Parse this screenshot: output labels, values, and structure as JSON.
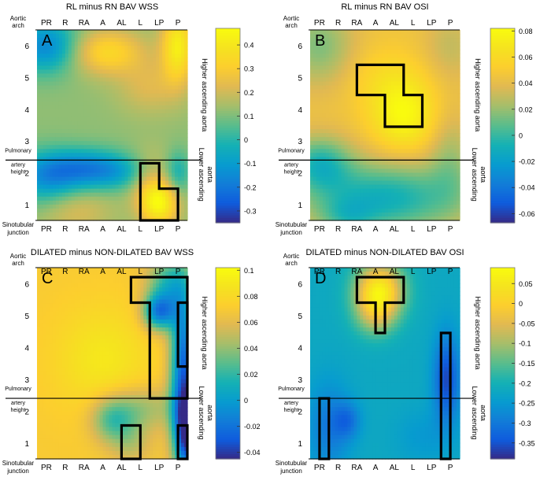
{
  "chart_data": [
    {
      "type": "heatmap",
      "letter": "A",
      "title": "RL minus RN BAV WSS",
      "colormap": "parula",
      "clim": [
        -0.35,
        0.47
      ],
      "colorbar_ticks": [
        "0.4",
        "0.3",
        "0.2",
        "0.1",
        "0",
        "-0.1",
        "-0.2",
        "-0.3"
      ],
      "colorbar_tick_values": [
        0.4,
        0.3,
        0.2,
        0.1,
        0,
        -0.1,
        -0.2,
        -0.3
      ],
      "outlines": [
        [
          [
            5,
            2.3
          ],
          [
            6,
            2.3
          ],
          [
            6,
            1.5
          ],
          [
            7,
            1.5
          ],
          [
            7,
            0.5
          ],
          [
            5,
            0.5
          ]
        ]
      ],
      "field": {
        "base": 0.12,
        "bumps": [
          {
            "x": 0,
            "y": 6,
            "amp": -0.28,
            "sx": 1.2,
            "sy": 0.6
          },
          {
            "x": 3.2,
            "y": 5.8,
            "amp": 0.22,
            "sx": 1.4,
            "sy": 0.5
          },
          {
            "x": 7,
            "y": 6,
            "amp": 0.3,
            "sx": 0.6,
            "sy": 0.8
          },
          {
            "x": 5.5,
            "y": 4.7,
            "amp": 0.1,
            "sx": 1.2,
            "sy": 0.6
          },
          {
            "x": 3,
            "y": 2,
            "amp": -0.22,
            "sx": 2.2,
            "sy": 0.4
          },
          {
            "x": 0,
            "y": 1.8,
            "amp": -0.2,
            "sx": 1.2,
            "sy": 0.6
          },
          {
            "x": 2,
            "y": 2.3,
            "amp": -0.12,
            "sx": 1.5,
            "sy": 0.4
          },
          {
            "x": 6,
            "y": 1,
            "amp": 0.3,
            "sx": 0.7,
            "sy": 0.5
          },
          {
            "x": 5.5,
            "y": 1.8,
            "amp": 0.16,
            "sx": 0.8,
            "sy": 0.6
          },
          {
            "x": 1.5,
            "y": 0.8,
            "amp": 0.1,
            "sx": 1.4,
            "sy": 0.5
          },
          {
            "x": 7,
            "y": 2,
            "amp": -0.12,
            "sx": 0.4,
            "sy": 0.5
          }
        ]
      }
    },
    {
      "type": "heatmap",
      "letter": "B",
      "title": "RL minus RN BAV OSI",
      "colormap": "parula",
      "clim": [
        -0.067,
        0.082
      ],
      "colorbar_ticks": [
        "0.08",
        "0.06",
        "0.04",
        "0.02",
        "0",
        "-0.02",
        "-0.04",
        "-0.06"
      ],
      "colorbar_tick_values": [
        0.08,
        0.06,
        0.04,
        0.02,
        0,
        -0.02,
        -0.04,
        -0.06
      ],
      "outlines": [
        [
          [
            2,
            5.4
          ],
          [
            4.5,
            5.4
          ],
          [
            4.5,
            4.45
          ],
          [
            5.5,
            4.45
          ],
          [
            5.5,
            3.45
          ],
          [
            3.5,
            3.45
          ],
          [
            3.5,
            4.45
          ],
          [
            2,
            4.45
          ]
        ]
      ],
      "field": {
        "base": 0.045,
        "bumps": [
          {
            "x": 0,
            "y": 6,
            "amp": -0.03,
            "sx": 1.3,
            "sy": 0.9
          },
          {
            "x": 7,
            "y": 6,
            "amp": -0.015,
            "sx": 1,
            "sy": 0.8
          },
          {
            "x": 4.5,
            "y": 3.8,
            "amp": 0.035,
            "sx": 1.2,
            "sy": 0.8
          },
          {
            "x": 3.5,
            "y": 5,
            "amp": 0.012,
            "sx": 1.5,
            "sy": 0.7
          },
          {
            "x": 3.5,
            "y": 1.2,
            "amp": -0.055,
            "sx": 3,
            "sy": 0.8
          },
          {
            "x": 0,
            "y": 2.3,
            "amp": -0.045,
            "sx": 1.2,
            "sy": 0.6
          },
          {
            "x": 1.5,
            "y": 0.6,
            "amp": -0.02,
            "sx": 1,
            "sy": 0.4
          },
          {
            "x": 7,
            "y": 2.5,
            "amp": -0.02,
            "sx": 0.8,
            "sy": 1
          }
        ]
      }
    },
    {
      "type": "heatmap",
      "letter": "C",
      "title": "DILATED minus NON-DILATED BAV WSS",
      "colormap": "parula",
      "clim": [
        -0.045,
        0.102
      ],
      "colorbar_ticks": [
        "0.1",
        "0.08",
        "0.06",
        "0.04",
        "0.02",
        "0",
        "-0.02",
        "-0.04"
      ],
      "colorbar_tick_values": [
        0.1,
        0.08,
        0.06,
        0.04,
        0.02,
        0,
        -0.02,
        -0.04
      ],
      "outlines": [
        [
          [
            4.5,
            6.2
          ],
          [
            7.5,
            6.2
          ],
          [
            7.5,
            2.4
          ],
          [
            5.5,
            2.4
          ],
          [
            5.5,
            5.4
          ],
          [
            4.5,
            5.4
          ]
        ],
        [
          [
            7,
            5.4
          ],
          [
            7.5,
            5.4
          ],
          [
            7.5,
            3.4
          ],
          [
            7,
            3.4
          ]
        ],
        [
          [
            4,
            1.55
          ],
          [
            5,
            1.55
          ],
          [
            5,
            0.5
          ],
          [
            4,
            0.5
          ]
        ],
        [
          [
            7,
            1.55
          ],
          [
            7.5,
            1.55
          ],
          [
            7.5,
            0.5
          ],
          [
            7,
            0.5
          ]
        ]
      ],
      "field": {
        "base": 0.07,
        "bumps": [
          {
            "x": 3,
            "y": 3.6,
            "amp": 0.02,
            "sx": 1.8,
            "sy": 1.2
          },
          {
            "x": 6.5,
            "y": 6,
            "amp": -0.05,
            "sx": 0.8,
            "sy": 0.6
          },
          {
            "x": 6,
            "y": 5.1,
            "amp": -0.08,
            "sx": 0.6,
            "sy": 0.4
          },
          {
            "x": 7.3,
            "y": 3.6,
            "amp": -0.09,
            "sx": 0.5,
            "sy": 1.6
          },
          {
            "x": 7.5,
            "y": 1.3,
            "amp": -0.1,
            "sx": 0.5,
            "sy": 1
          },
          {
            "x": 5,
            "y": 2.1,
            "amp": -0.03,
            "sx": 1.4,
            "sy": 0.5
          },
          {
            "x": 3.5,
            "y": 1.7,
            "amp": -0.04,
            "sx": 0.8,
            "sy": 0.5
          },
          {
            "x": 4.5,
            "y": 1,
            "amp": -0.02,
            "sx": 0.8,
            "sy": 0.5
          }
        ]
      }
    },
    {
      "type": "heatmap",
      "letter": "D",
      "title": "DILATED minus NON-DILATED BAV OSI",
      "colormap": "parula",
      "clim": [
        -0.39,
        0.09
      ],
      "colorbar_ticks": [
        "0.05",
        "0",
        "-0.05",
        "-0.1",
        "-0.15",
        "-0.2",
        "-0.25",
        "-0.3",
        "-0.35"
      ],
      "colorbar_tick_values": [
        0.05,
        0,
        -0.05,
        -0.1,
        -0.15,
        -0.2,
        -0.25,
        -0.3,
        -0.35
      ],
      "outlines": [
        [
          [
            2,
            6.2
          ],
          [
            4.5,
            6.2
          ],
          [
            4.5,
            5.4
          ],
          [
            3.5,
            5.4
          ],
          [
            3.5,
            4.45
          ],
          [
            3,
            4.45
          ],
          [
            3,
            5.4
          ],
          [
            2,
            5.4
          ]
        ],
        [
          [
            6.5,
            4.45
          ],
          [
            7,
            4.45
          ],
          [
            7,
            0.5
          ],
          [
            6.5,
            0.5
          ]
        ],
        [
          [
            0,
            2.4
          ],
          [
            0.5,
            2.4
          ],
          [
            0.5,
            0.5
          ],
          [
            0,
            0.5
          ]
        ]
      ],
      "field": {
        "base": -0.22,
        "bumps": [
          {
            "x": 3.2,
            "y": 5.8,
            "amp": 0.27,
            "sx": 0.9,
            "sy": 0.6
          },
          {
            "x": 3,
            "y": 5,
            "amp": 0.1,
            "sx": 0.8,
            "sy": 0.5
          },
          {
            "x": 6.8,
            "y": 3,
            "amp": -0.14,
            "sx": 0.5,
            "sy": 1
          },
          {
            "x": 0.5,
            "y": 1.5,
            "amp": -0.08,
            "sx": 0.8,
            "sy": 1
          },
          {
            "x": 1.5,
            "y": 1.7,
            "amp": -0.08,
            "sx": 0.5,
            "sy": 0.4
          },
          {
            "x": 5.5,
            "y": 1.2,
            "amp": -0.03,
            "sx": 1,
            "sy": 0.6
          }
        ]
      }
    }
  ],
  "x_tick_labels": [
    "PR",
    "R",
    "RA",
    "A",
    "AL",
    "L",
    "LP",
    "P"
  ],
  "y_tick_labels": [
    "1",
    "2",
    "3",
    "4",
    "5",
    "6"
  ],
  "y_left_labels": {
    "top": "Aortic arch",
    "middle": "Pulmonary artery height",
    "bottom": "Sinotubular junction"
  },
  "side_labels": {
    "upper": "Higher ascending aorta",
    "lower": "Lower ascending aorta"
  },
  "colors": {
    "outline": "#000000",
    "divider": "#000000",
    "text": "#000000"
  }
}
